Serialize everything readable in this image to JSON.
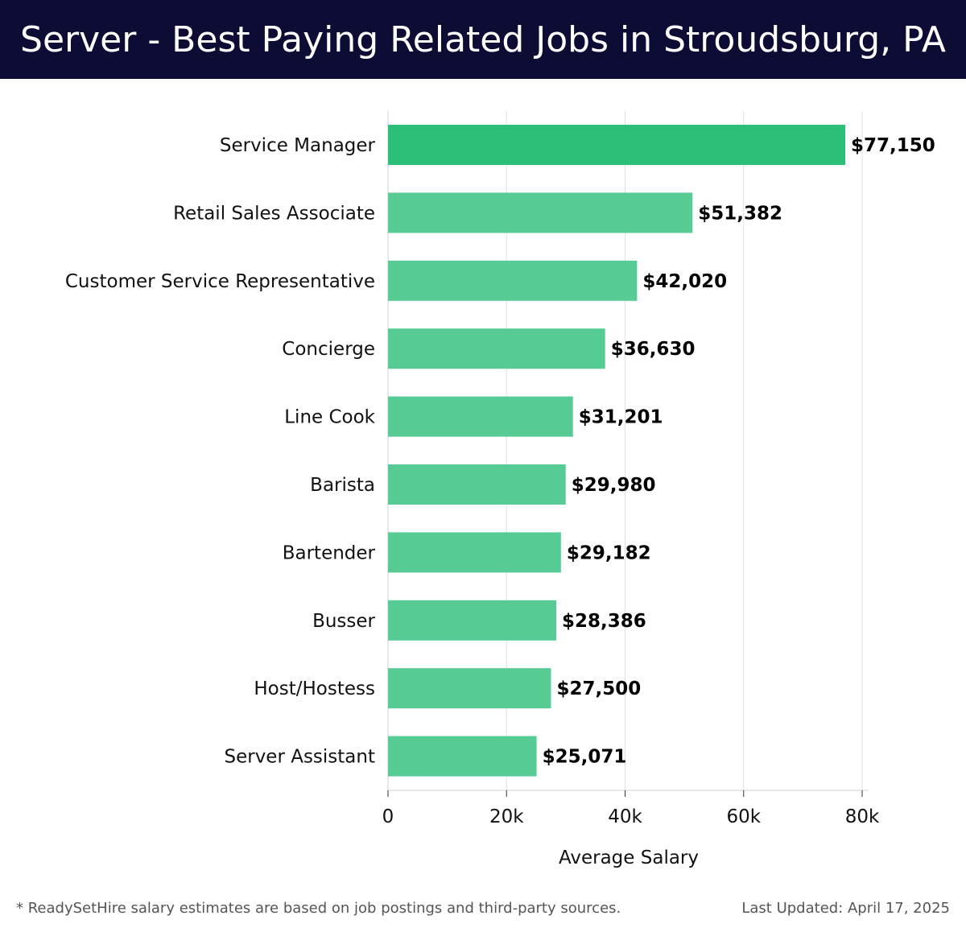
{
  "header": {
    "title": "Server - Best Paying Related Jobs in Stroudsburg, PA"
  },
  "chart_data": {
    "type": "bar",
    "orientation": "horizontal",
    "categories": [
      "Service Manager",
      "Retail Sales Associate",
      "Customer Service Representative",
      "Concierge",
      "Line Cook",
      "Barista",
      "Bartender",
      "Busser",
      "Host/Hostess",
      "Server Assistant"
    ],
    "values": [
      77150,
      51382,
      42020,
      36630,
      31201,
      29980,
      29182,
      28386,
      27500,
      25071
    ],
    "value_labels": [
      "$77,150",
      "$51,382",
      "$42,020",
      "$36,630",
      "$31,201",
      "$29,980",
      "$29,182",
      "$28,386",
      "$27,500",
      "$25,071"
    ],
    "xlabel": "Average Salary",
    "ylabel": "",
    "xlim": [
      0,
      80000
    ],
    "xticks": [
      0,
      20000,
      40000,
      60000,
      80000
    ],
    "xtick_labels": [
      "0",
      "20k",
      "40k",
      "60k",
      "80k"
    ],
    "grid": "vertical",
    "bar_color_top": "#2bbf77",
    "bar_color": "#56cc94"
  },
  "footer": {
    "note": "* ReadySetHire salary estimates are based on job postings and third-party sources.",
    "updated": "Last Updated: April 17, 2025"
  },
  "colors": {
    "header_bg": "#0c0c34",
    "grid": "#e0e0e0"
  }
}
